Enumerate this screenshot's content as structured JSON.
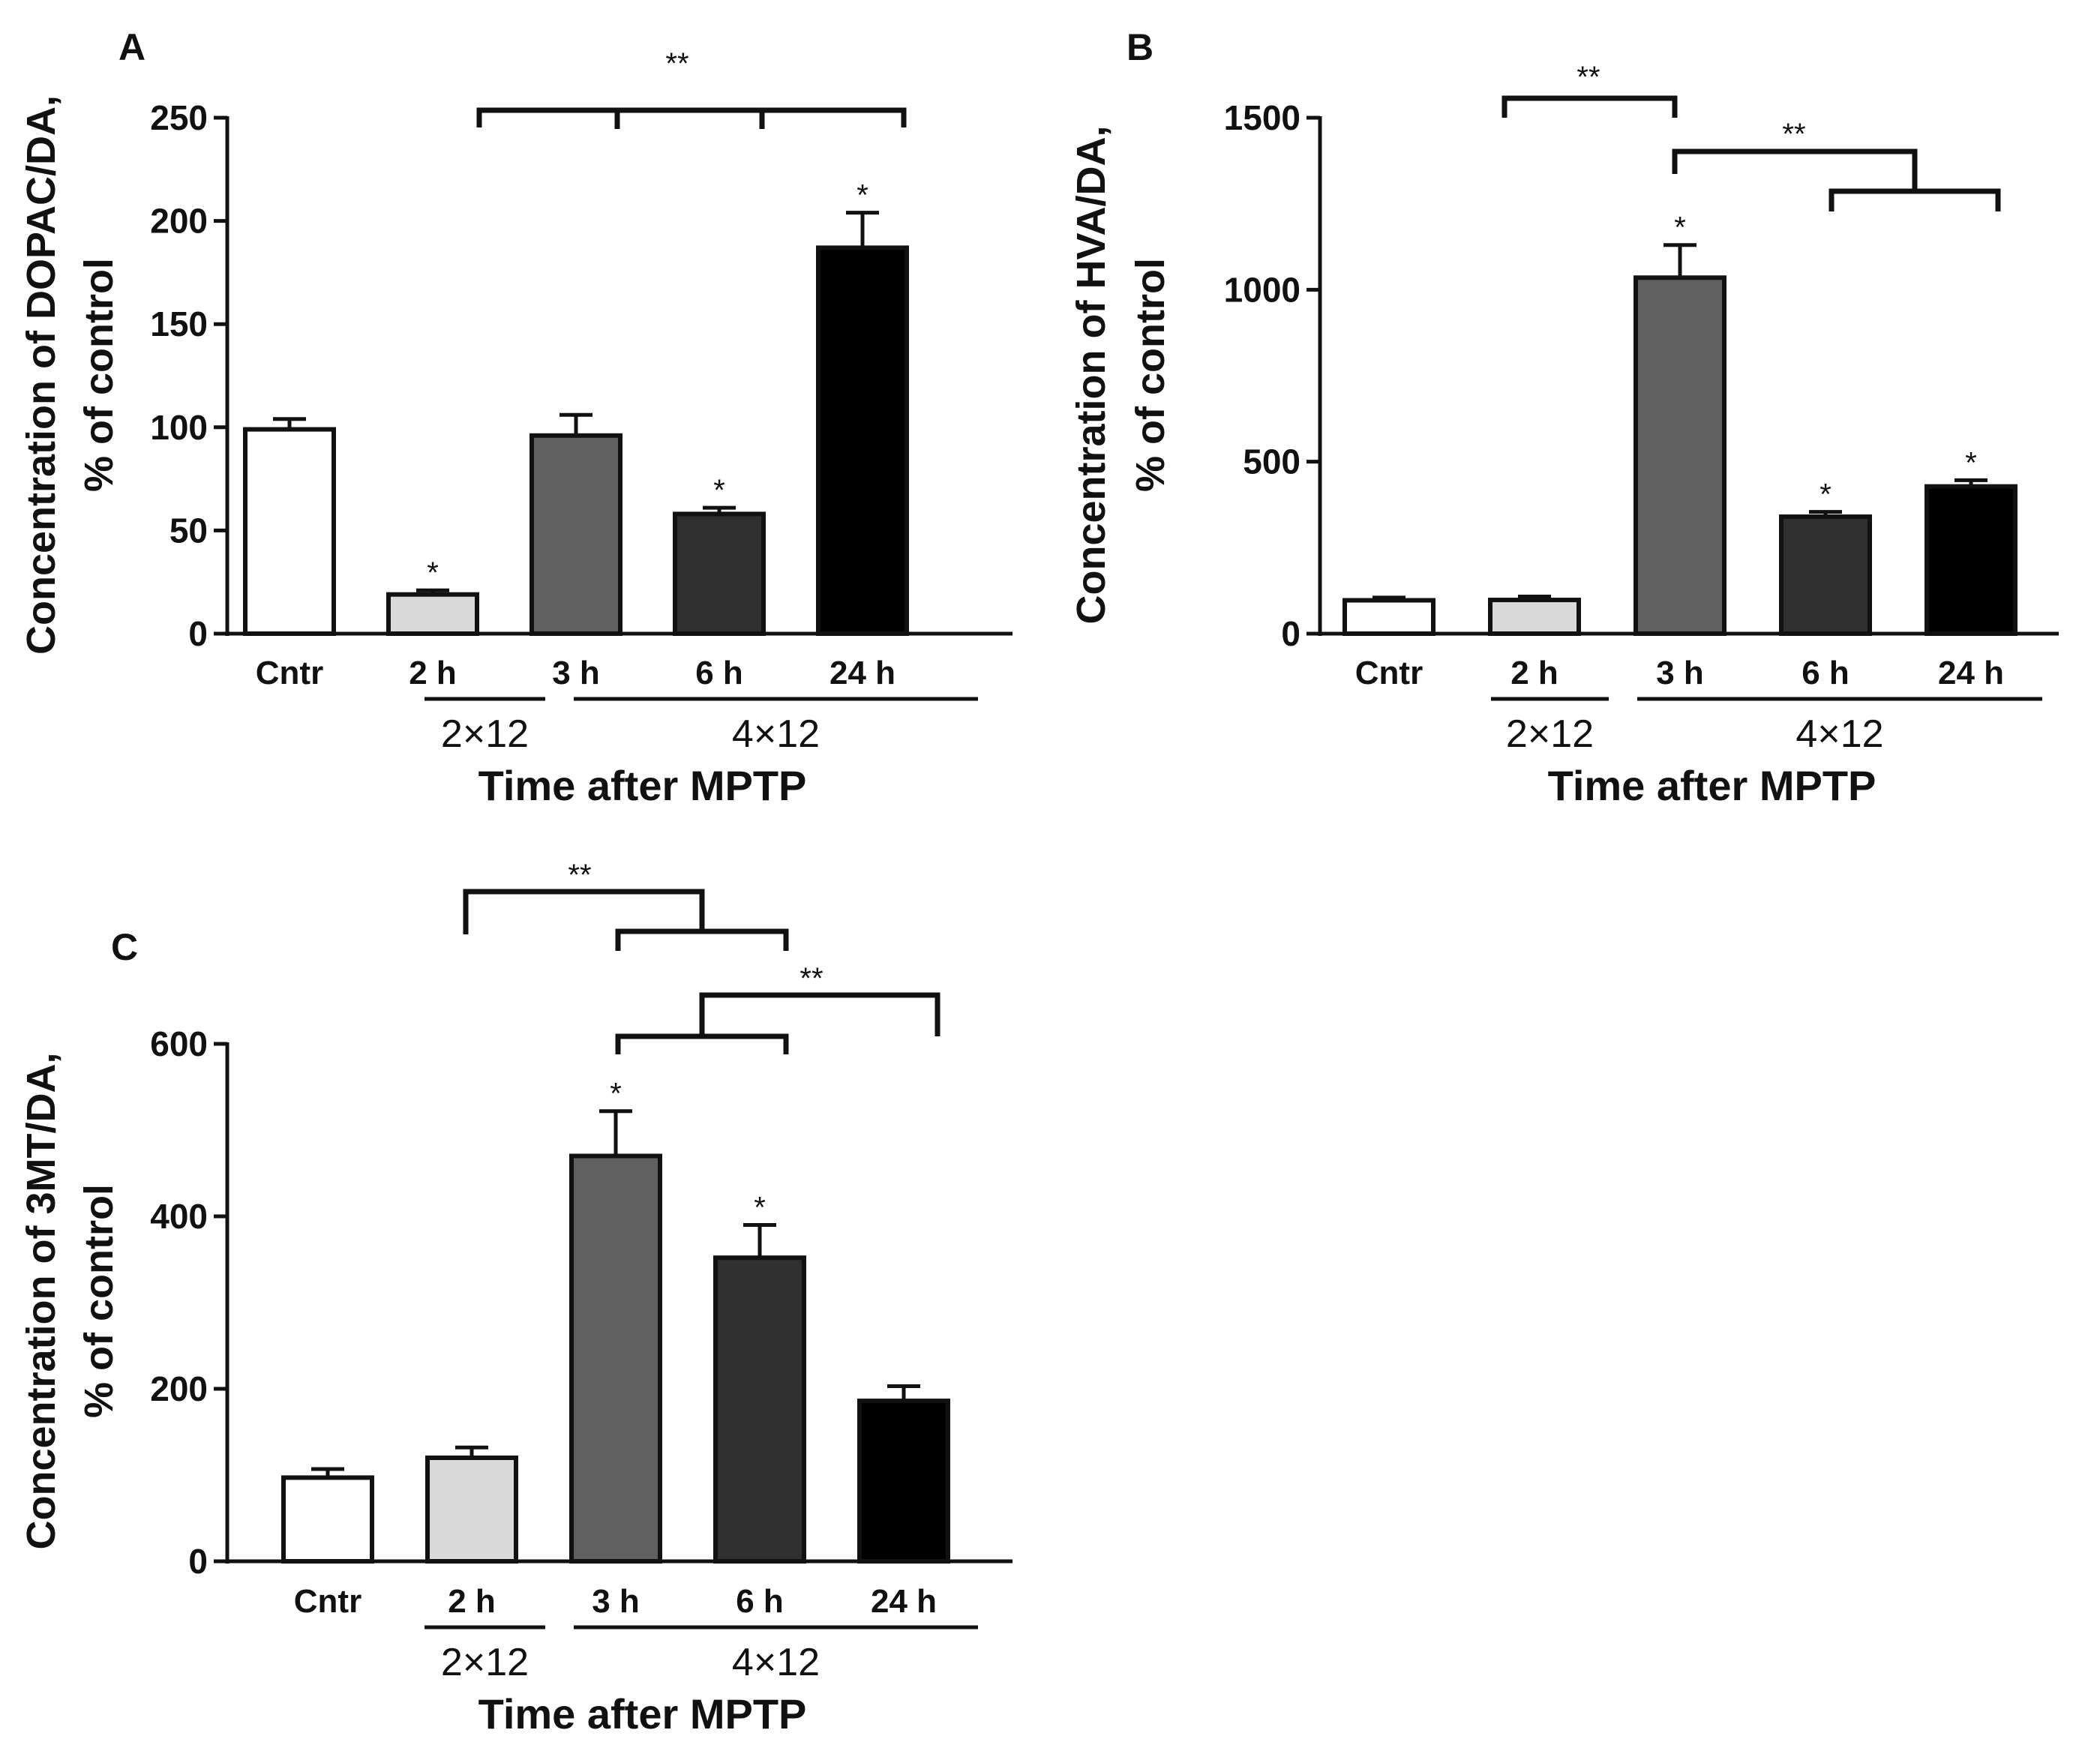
{
  "colors": {
    "cntr": "#ffffff",
    "2h": "#d9d9d9",
    "3h": "#606060",
    "6h": "#303030",
    "24h": "#000000",
    "axis": "#111111"
  },
  "panels": [
    {
      "id": "A",
      "label": "A"
    },
    {
      "id": "B",
      "label": "B"
    },
    {
      "id": "C",
      "label": "C"
    }
  ],
  "chart_data": [
    {
      "panel": "A",
      "type": "bar",
      "categories": [
        "Cntr",
        "2 h",
        "3 h",
        "6 h",
        "24 h"
      ],
      "values": [
        99,
        19,
        96,
        58,
        187
      ],
      "errors": [
        5,
        2,
        10,
        3,
        17
      ],
      "sig_single": [
        false,
        true,
        false,
        true,
        true
      ],
      "ylabel_line1": "Concentration of DOPAC/DA,",
      "ylabel_line2": "% of control",
      "ylim": [
        0,
        250
      ],
      "yticks": [
        "0",
        "50",
        "100",
        "150",
        "200",
        "250"
      ],
      "ytick_values": [
        0,
        50,
        100,
        150,
        200,
        250
      ],
      "group_labels": [
        "2×12",
        "4×12"
      ],
      "xlabel": "Time after MPTP",
      "sig_double_label": "**",
      "sig_single_label": "*"
    },
    {
      "panel": "B",
      "type": "bar",
      "categories": [
        "Cntr",
        "2 h",
        "3 h",
        "6 h",
        "24 h"
      ],
      "values": [
        97,
        98,
        1035,
        340,
        428
      ],
      "errors": [
        8,
        10,
        95,
        14,
        18
      ],
      "sig_single": [
        false,
        false,
        true,
        true,
        true
      ],
      "ylabel_line1": "Concentration of HVA/DA,",
      "ylabel_line2": "% of control",
      "ylim": [
        0,
        1500
      ],
      "yticks": [
        "0",
        "500",
        "1000",
        "1500"
      ],
      "ytick_values": [
        0,
        500,
        1000,
        1500
      ],
      "group_labels": [
        "2×12",
        "4×12"
      ],
      "xlabel": "Time after MPTP",
      "sig_double_label": "**",
      "sig_single_label": "*"
    },
    {
      "panel": "C",
      "type": "bar",
      "categories": [
        "Cntr",
        "2 h",
        "3 h",
        "6 h",
        "24 h"
      ],
      "values": [
        97,
        120,
        470,
        352,
        186
      ],
      "errors": [
        10,
        12,
        52,
        38,
        17
      ],
      "sig_single": [
        false,
        false,
        true,
        true,
        false
      ],
      "ylabel_line1": "Concentration of 3MT/DA,",
      "ylabel_line2": "% of control",
      "ylim": [
        0,
        600
      ],
      "yticks": [
        "0",
        "200",
        "400",
        "600"
      ],
      "ytick_values": [
        0,
        200,
        400,
        600
      ],
      "group_labels": [
        "2×12",
        "4×12"
      ],
      "xlabel": "Time after MPTP",
      "sig_double_label": "**",
      "sig_single_label": "*"
    }
  ]
}
